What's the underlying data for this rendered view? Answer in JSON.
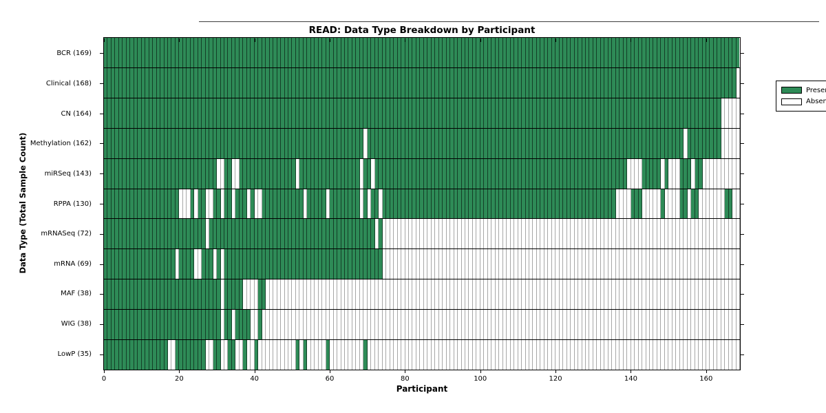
{
  "chart_data": {
    "type": "heatmap",
    "title": "READ: Data Type Breakdown by Participant",
    "xlabel": "Participant",
    "ylabel": "Data Type (Total Sample Count)",
    "n_participants": 169,
    "x_range": [
      0,
      169
    ],
    "x_ticks": [
      0,
      20,
      40,
      60,
      80,
      100,
      120,
      140,
      160
    ],
    "grid": false,
    "legend": {
      "position": "upper right",
      "entries": [
        "Present",
        "Absent"
      ]
    },
    "colors": {
      "present": "#2e8b57",
      "absent": "#ffffff",
      "cell_border": "#333333",
      "frame": "#000000"
    },
    "rows": [
      {
        "label": "BCR (169)",
        "data_type": "BCR",
        "sample_count": 169,
        "present_ranges": [
          [
            0,
            168
          ]
        ]
      },
      {
        "label": "Clinical (168)",
        "data_type": "Clinical",
        "sample_count": 168,
        "present_ranges": [
          [
            0,
            167
          ]
        ]
      },
      {
        "label": "CN (164)",
        "data_type": "CN",
        "sample_count": 164,
        "present_ranges": [
          [
            0,
            163
          ]
        ]
      },
      {
        "label": "Methylation (162)",
        "data_type": "Methylation",
        "sample_count": 162,
        "present_ranges": [
          [
            0,
            68
          ],
          [
            70,
            153
          ],
          [
            155,
            163
          ]
        ]
      },
      {
        "label": "miRSeq (143)",
        "data_type": "miRSeq",
        "sample_count": 143,
        "present_ranges": [
          [
            0,
            29
          ],
          [
            32,
            33
          ],
          [
            36,
            50
          ],
          [
            52,
            67
          ],
          [
            69,
            70
          ],
          [
            72,
            138
          ],
          [
            143,
            147
          ],
          [
            149,
            149
          ],
          [
            153,
            155
          ],
          [
            157,
            158
          ]
        ]
      },
      {
        "label": "RPPA (130)",
        "data_type": "RPPA",
        "sample_count": 130,
        "present_ranges": [
          [
            0,
            19
          ],
          [
            23,
            23
          ],
          [
            25,
            26
          ],
          [
            29,
            30
          ],
          [
            32,
            33
          ],
          [
            35,
            37
          ],
          [
            39,
            39
          ],
          [
            42,
            52
          ],
          [
            54,
            58
          ],
          [
            60,
            67
          ],
          [
            69,
            69
          ],
          [
            71,
            72
          ],
          [
            74,
            135
          ],
          [
            140,
            142
          ],
          [
            148,
            148
          ],
          [
            153,
            154
          ],
          [
            156,
            157
          ],
          [
            165,
            166
          ]
        ]
      },
      {
        "label": "mRNASeq (72)",
        "data_type": "mRNASeq",
        "sample_count": 72,
        "present_ranges": [
          [
            0,
            26
          ],
          [
            28,
            71
          ],
          [
            73,
            73
          ]
        ]
      },
      {
        "label": "mRNA (69)",
        "data_type": "mRNA",
        "sample_count": 69,
        "present_ranges": [
          [
            0,
            18
          ],
          [
            20,
            23
          ],
          [
            26,
            28
          ],
          [
            30,
            30
          ],
          [
            32,
            73
          ]
        ]
      },
      {
        "label": "MAF (38)",
        "data_type": "MAF",
        "sample_count": 38,
        "present_ranges": [
          [
            0,
            30
          ],
          [
            32,
            36
          ],
          [
            41,
            42
          ]
        ]
      },
      {
        "label": "WIG (38)",
        "data_type": "WIG",
        "sample_count": 38,
        "present_ranges": [
          [
            0,
            30
          ],
          [
            32,
            33
          ],
          [
            35,
            38
          ],
          [
            41,
            41
          ]
        ]
      },
      {
        "label": "LowP (35)",
        "data_type": "LowP",
        "sample_count": 35,
        "present_ranges": [
          [
            0,
            16
          ],
          [
            19,
            26
          ],
          [
            29,
            30
          ],
          [
            33,
            34
          ],
          [
            37,
            37
          ],
          [
            40,
            40
          ],
          [
            51,
            51
          ],
          [
            53,
            53
          ],
          [
            59,
            59
          ],
          [
            69,
            69
          ]
        ]
      }
    ]
  }
}
